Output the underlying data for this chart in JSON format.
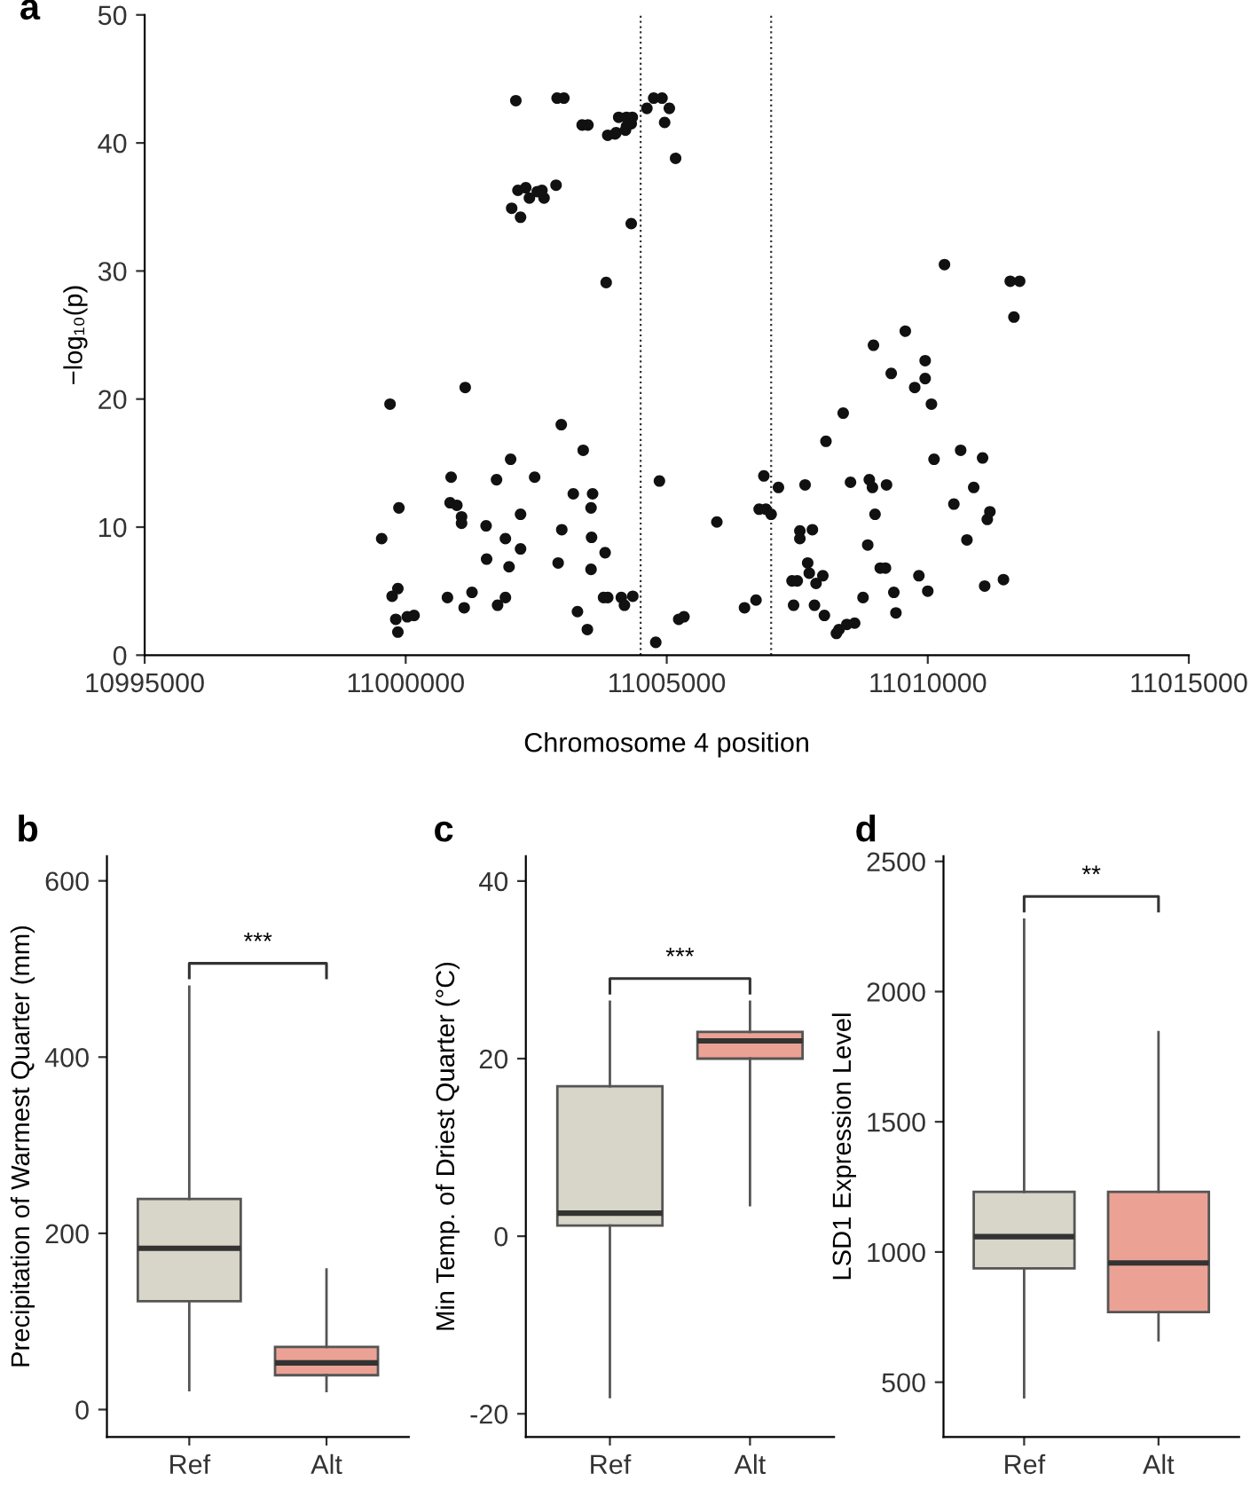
{
  "chart_data": [
    {
      "type": "scatter",
      "title": "a",
      "xlabel": "Chromosome 4 position",
      "ylabel": "−log₁₀(p)",
      "color": "#111111",
      "marker": "circle",
      "grid": false,
      "xlim": [
        10995000,
        11015000
      ],
      "xticks": [
        10995000,
        11000000,
        11005000,
        11010000,
        11015000
      ],
      "ylim": [
        0,
        50
      ],
      "yticks": [
        0,
        10,
        20,
        30,
        40,
        50
      ],
      "ref_lines": [
        {
          "axis": "x",
          "value": 11004500,
          "line_style": "dotted",
          "color": "#333333"
        },
        {
          "axis": "x",
          "value": 11007000,
          "line_style": "dotted",
          "color": "#333333"
        }
      ],
      "x": [
        10999540,
        10999700,
        10999870,
        10999740,
        10999850,
        10999810,
        10999850,
        11000030,
        11000160,
        11000800,
        11000870,
        11000850,
        11000980,
        11001070,
        11001070,
        11001140,
        11001120,
        11001270,
        11001540,
        11001550,
        11001740,
        11001760,
        11001910,
        11001910,
        11001980,
        11002010,
        11002200,
        11002200,
        11002470,
        11002980,
        11002920,
        11002990,
        11003210,
        11003290,
        11003400,
        11003480,
        11003580,
        11003550,
        11003560,
        11003550,
        11003820,
        11003790,
        11003870,
        11004130,
        11004190,
        11004350,
        11003840,
        11004320,
        11002110,
        11002030,
        11002200,
        11002150,
        11002300,
        11002370,
        11002520,
        11002650,
        11002610,
        11002880,
        11002900,
        11003030,
        11003380,
        11003490,
        11003870,
        11004010,
        11004080,
        11004230,
        11004320,
        11004210,
        11004030,
        11004230,
        11004340,
        11004620,
        11004750,
        11004910,
        11005050,
        11004960,
        11005170,
        11004860,
        11004790,
        11005230,
        11005330,
        11005960,
        11006490,
        11006710,
        11006860,
        11006770,
        11006900,
        11007000,
        11007140,
        11007650,
        11007550,
        11007550,
        11007790,
        11007400,
        11007500,
        11007700,
        11007730,
        11007860,
        11007990,
        11007430,
        11007830,
        11008020,
        11008050,
        11008250,
        11008300,
        11008450,
        11008600,
        11008380,
        11008520,
        11008760,
        11008850,
        11008880,
        11008940,
        11008960,
        11008990,
        11009090,
        11009190,
        11009210,
        11009300,
        11009350,
        11009390,
        11009570,
        11009750,
        11009830,
        11009950,
        11009950,
        11010000,
        11010070,
        11010120,
        11010320,
        11010500,
        11010630,
        11010750,
        11010880,
        11011050,
        11011090,
        11011140,
        11011190,
        11011450,
        11011580,
        11011760,
        11011650
      ],
      "values": [
        9.1,
        19.6,
        11.5,
        4.6,
        5.2,
        2.8,
        1.8,
        3.0,
        3.1,
        4.5,
        13.9,
        11.9,
        11.7,
        10.8,
        10.3,
        20.9,
        3.7,
        4.9,
        10.1,
        7.5,
        13.7,
        3.9,
        4.5,
        9.1,
        6.9,
        15.3,
        11.0,
        8.3,
        13.9,
        18.0,
        7.2,
        9.8,
        12.6,
        3.4,
        16.0,
        2.0,
        12.6,
        11.5,
        9.2,
        6.7,
        8.0,
        4.5,
        4.5,
        4.5,
        3.9,
        4.6,
        29.1,
        33.7,
        43.3,
        34.9,
        34.2,
        36.3,
        36.5,
        35.7,
        36.2,
        35.7,
        36.3,
        36.7,
        43.5,
        43.5,
        41.4,
        41.4,
        40.6,
        40.7,
        42.0,
        42.0,
        41.5,
        41.0,
        40.8,
        41.3,
        42.0,
        42.7,
        43.5,
        43.5,
        42.7,
        41.6,
        38.8,
        13.6,
        1.0,
        2.8,
        3.0,
        10.4,
        3.7,
        4.3,
        14.0,
        11.4,
        11.4,
        11.0,
        13.1,
        13.3,
        9.7,
        9.1,
        9.8,
        5.8,
        5.8,
        7.2,
        6.4,
        5.6,
        6.2,
        3.9,
        3.9,
        3.1,
        16.7,
        1.7,
        2.0,
        2.4,
        2.5,
        18.9,
        13.5,
        4.5,
        8.6,
        13.7,
        13.1,
        24.2,
        11.0,
        6.8,
        6.8,
        13.3,
        22.0,
        4.9,
        3.3,
        25.3,
        20.9,
        6.2,
        23.0,
        21.6,
        5.0,
        19.6,
        15.3,
        30.5,
        11.8,
        16.0,
        9.0,
        13.1,
        15.4,
        5.4,
        10.6,
        11.2,
        5.9,
        29.2,
        29.2,
        26.4
      ]
    },
    {
      "type": "box",
      "title": "b",
      "categories": [
        "Ref",
        "Alt"
      ],
      "ylabel": "Precipitation of Warmest Quarter (mm)",
      "colors": [
        "#d8d6c8",
        "#eba294"
      ],
      "boxes": [
        {
          "low": 22,
          "q1": 123,
          "median": 183,
          "q3": 239,
          "high": 480
        },
        {
          "low": 21,
          "q1": 39,
          "median": 53,
          "q3": 71,
          "high": 159
        }
      ],
      "ylim": [
        -31,
        628
      ],
      "yticks": [
        0,
        200,
        400,
        600
      ],
      "annotations": [
        "***"
      ]
    },
    {
      "type": "box",
      "title": "c",
      "categories": [
        "Ref",
        "Alt"
      ],
      "ylabel": "Min Temp. of Driest Quarter (°C)",
      "colors": [
        "#d8d6c8",
        "#eba294"
      ],
      "boxes": [
        {
          "low": -18.1,
          "q1": 1.2,
          "median": 2.6,
          "q3": 16.9,
          "high": 26.4
        },
        {
          "low": 3.5,
          "q1": 20,
          "median": 22,
          "q3": 23,
          "high": 26.4
        }
      ],
      "ylim": [
        -22.6,
        42.8
      ],
      "yticks": [
        -20,
        0,
        20,
        40
      ],
      "annotations": [
        "***"
      ]
    },
    {
      "type": "box",
      "title": "d",
      "categories": [
        "Ref",
        "Alt"
      ],
      "ylabel": "LSD1 Expression Level",
      "colors": [
        "#d8d6c8",
        "#eba294"
      ],
      "boxes": [
        {
          "low": 442,
          "q1": 937,
          "median": 1059,
          "q3": 1231,
          "high": 2276
        },
        {
          "low": 661,
          "q1": 769,
          "median": 958,
          "q3": 1231,
          "high": 1844
        }
      ],
      "ylim": [
        290,
        2520
      ],
      "yticks": [
        500,
        1000,
        1500,
        2000,
        2500
      ],
      "annotations": [
        "**"
      ]
    }
  ]
}
